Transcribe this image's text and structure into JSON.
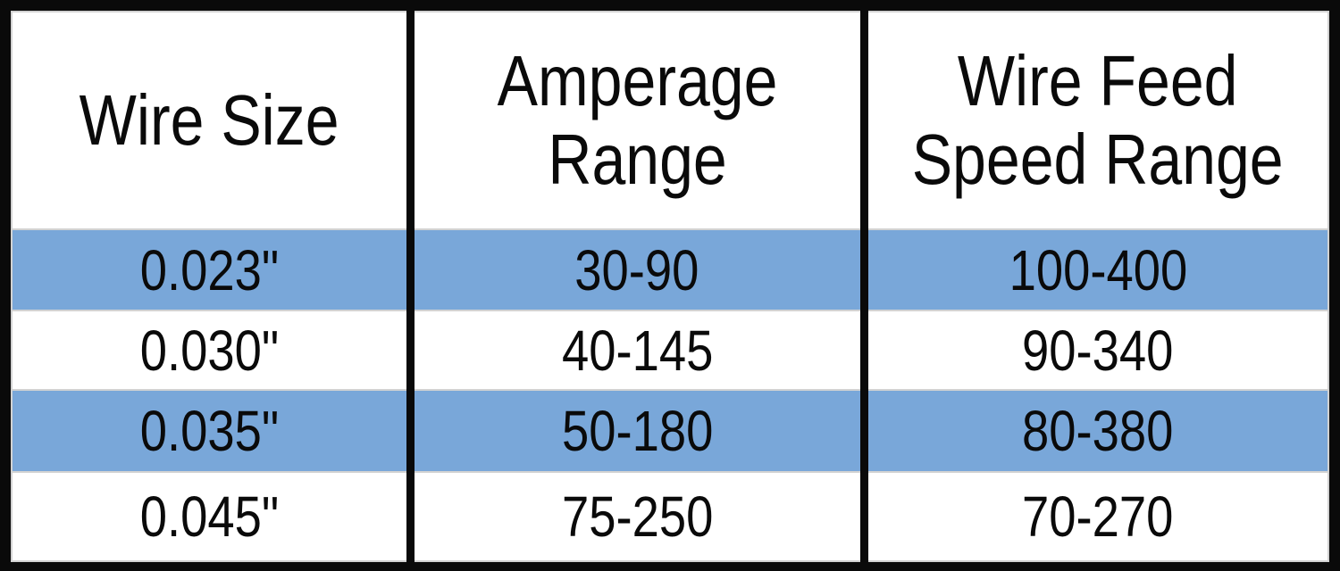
{
  "chart_data": {
    "type": "table",
    "title": "",
    "columns": [
      "Wire Size",
      "Amperage Range",
      "Wire Feed Speed Range"
    ],
    "columns_display": [
      "Wire Size",
      "Amperage\nRange",
      "Wire Feed\nSpeed Range"
    ],
    "rows": [
      [
        "0.023\"",
        "30-90",
        "100-400"
      ],
      [
        "0.030\"",
        "40-145",
        "90-340"
      ],
      [
        "0.035\"",
        "50-180",
        "80-380"
      ],
      [
        "0.045\"",
        "75-250",
        "70-270"
      ]
    ],
    "striped_row_indexes": [
      0,
      2
    ],
    "layout": "3-column bordered table, rows 1 and 3 highlighted blue"
  },
  "colors": {
    "stripe_blue": "#79a7d9",
    "frame_black": "#0a0a0a",
    "row_divider_gray": "#d2d2d2",
    "text": "#0a0a0a",
    "background": "#ffffff"
  }
}
